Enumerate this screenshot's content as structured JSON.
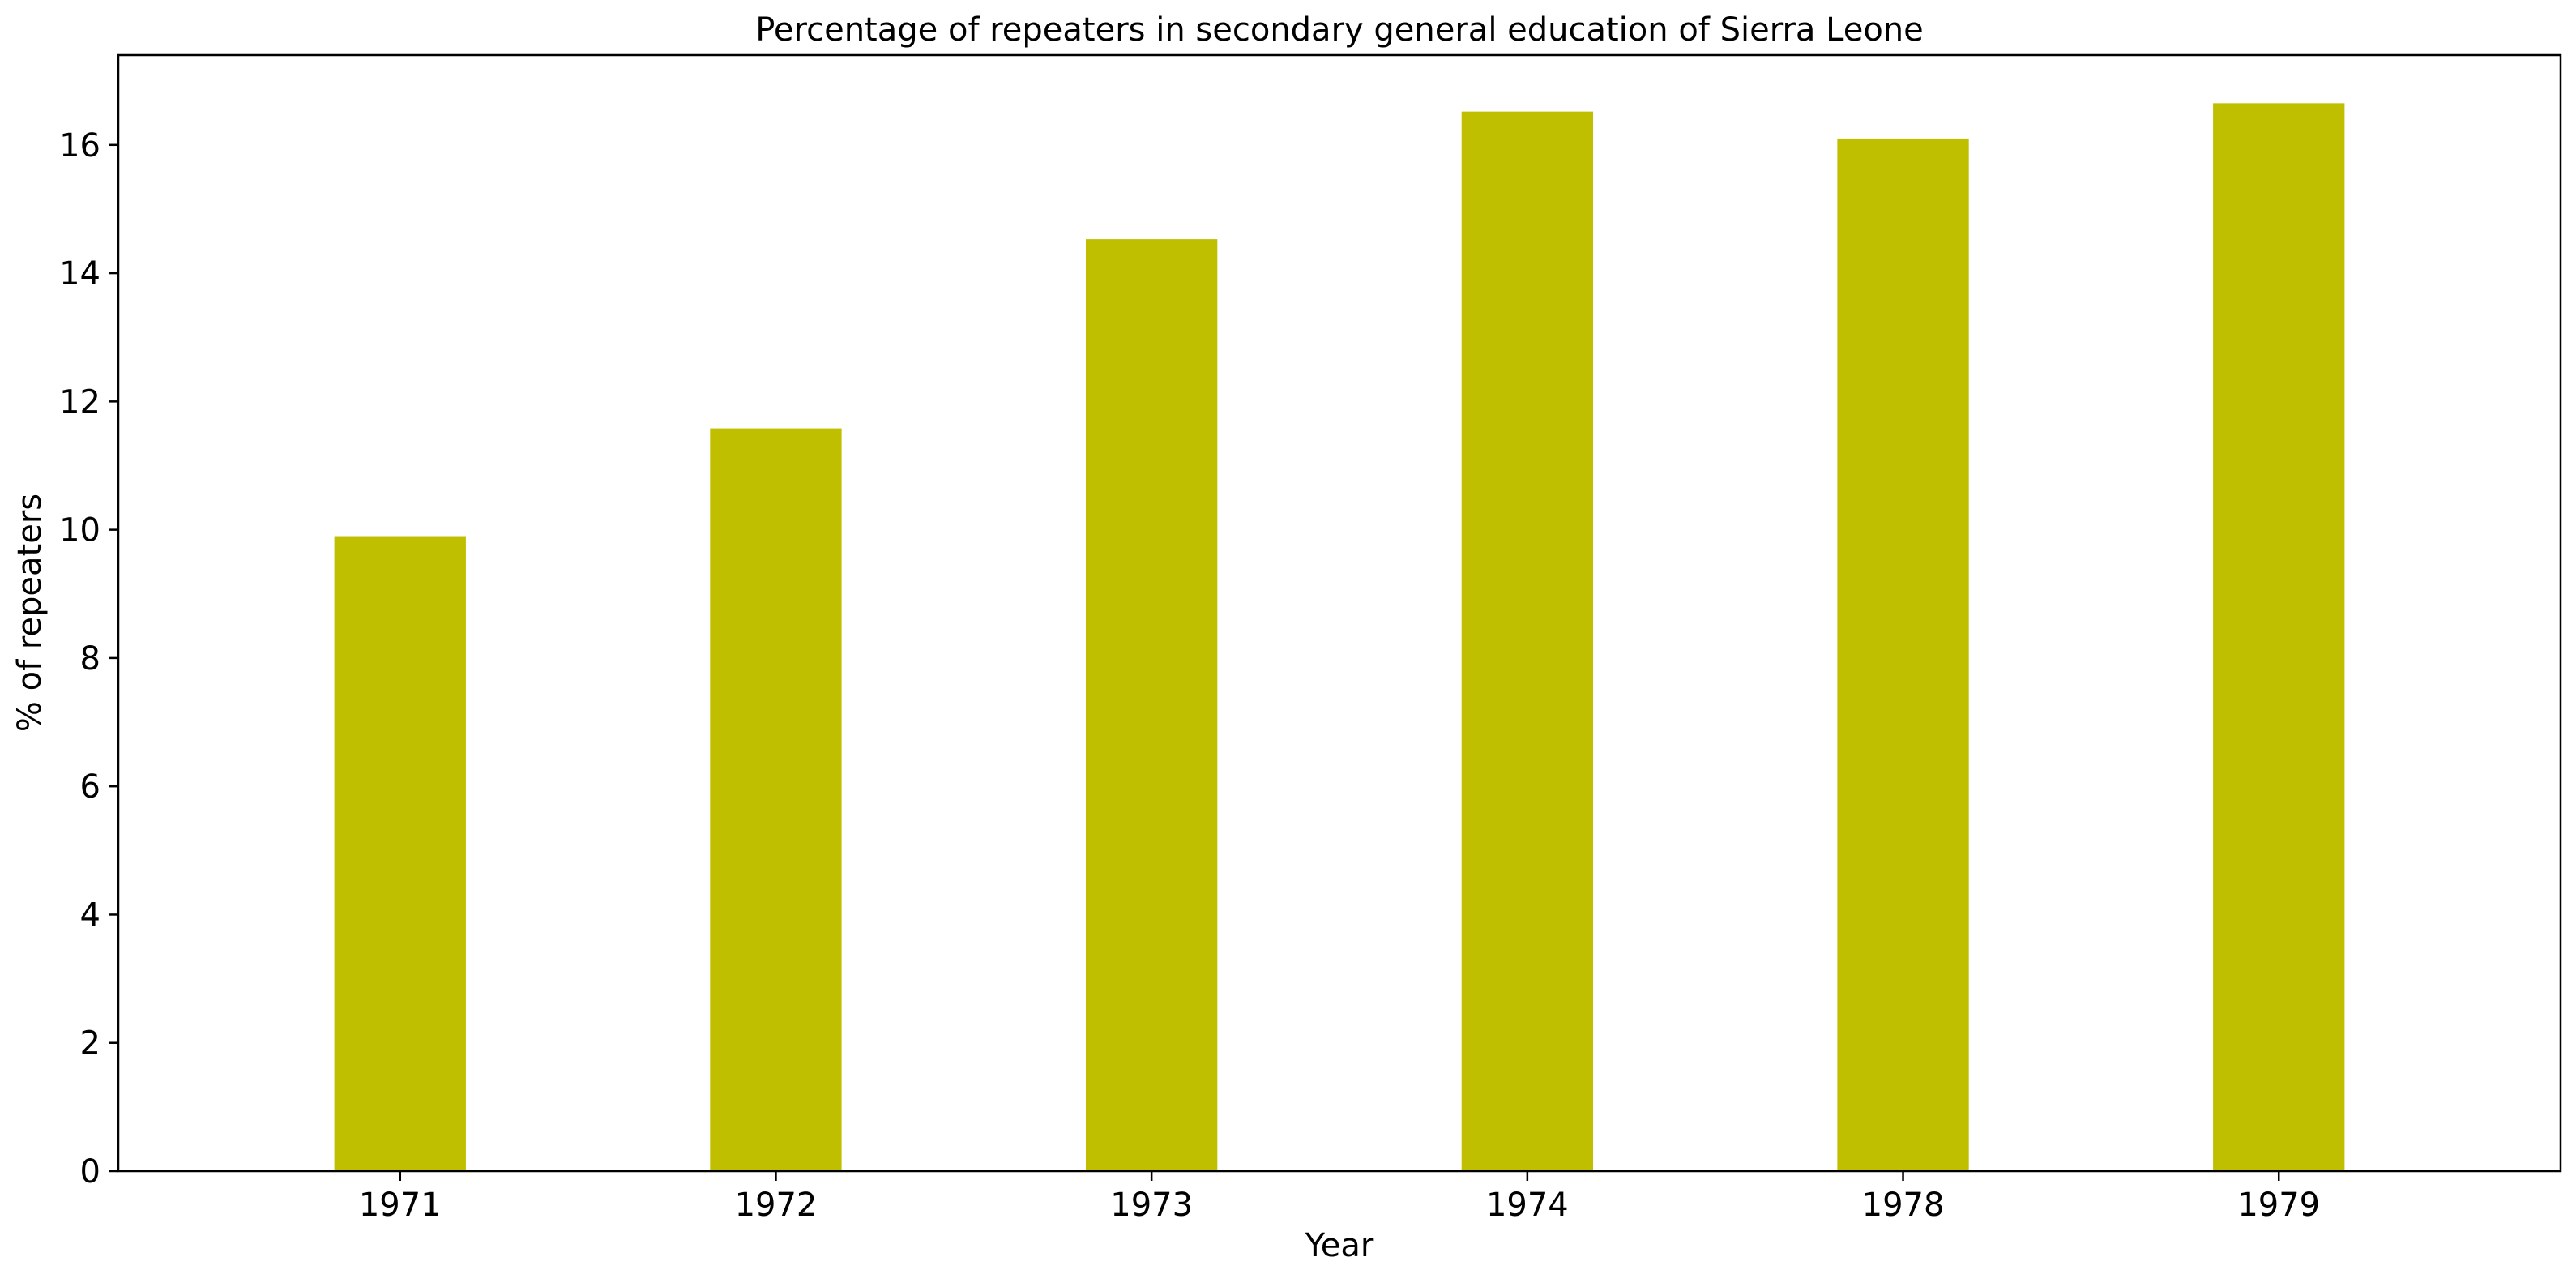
{
  "chart_data": {
    "type": "bar",
    "title": "Percentage of repeaters in secondary general education of Sierra Leone",
    "xlabel": "Year",
    "ylabel": "% of repeaters",
    "categories": [
      "1971",
      "1972",
      "1973",
      "1974",
      "1978",
      "1979"
    ],
    "values": [
      9.9,
      11.58,
      14.53,
      16.52,
      16.1,
      16.65
    ],
    "ylim": [
      0,
      17.4
    ],
    "yticks": [
      0,
      2,
      4,
      6,
      8,
      10,
      12,
      14,
      16
    ],
    "grid": false,
    "legend": "none",
    "bar_color": "#bfbf00"
  }
}
